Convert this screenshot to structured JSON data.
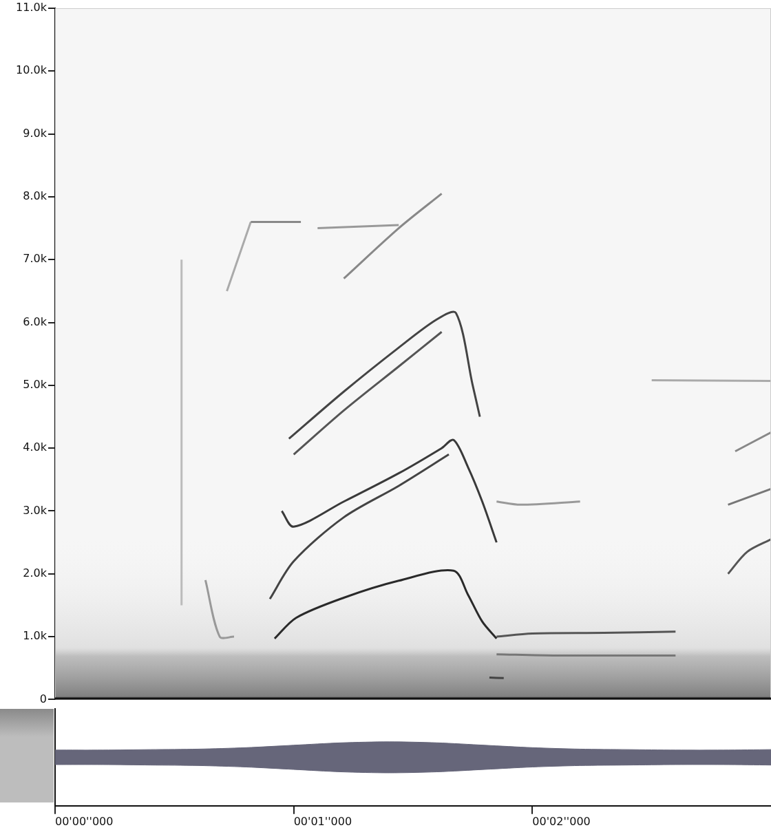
{
  "chart_data": [
    {
      "type": "line",
      "xlim": [
        0,
        3
      ],
      "ylim": [
        0,
        11000
      ],
      "yticks": [
        0,
        {
          "value": 1000,
          "label": "1.0k"
        },
        {
          "value": 2000,
          "label": "2.0k"
        },
        {
          "value": 3000,
          "label": "3.0k"
        },
        {
          "value": 4000,
          "label": "4.0k"
        },
        {
          "value": 5000,
          "label": "5.0k"
        },
        {
          "value": 6000,
          "label": "6.0k"
        },
        {
          "value": 7000,
          "label": "7.0k"
        },
        {
          "value": 8000,
          "label": "8.0k"
        },
        {
          "value": 9000,
          "label": "9.0k"
        },
        {
          "value": 10000,
          "label": "10.0k"
        },
        {
          "value": 11000,
          "label": "11.0k"
        }
      ],
      "grid": false,
      "tick_labels": "y",
      "series": [
        {
          "color": "#2a2a2a",
          "x": [
            0.92,
            1.01,
            1.21,
            1.44,
            1.67,
            1.73,
            1.79,
            1.85
          ],
          "values": [
            970,
            1300,
            1620,
            1890,
            2050,
            1670,
            1240,
            970
          ]
        },
        {
          "color": "#555555",
          "x": [
            1.85,
            2.0,
            2.3,
            2.6
          ],
          "values": [
            1000,
            1050,
            1060,
            1080
          ]
        },
        {
          "color": "#777777",
          "x": [
            1.85,
            2.1,
            2.6
          ],
          "values": [
            720,
            700,
            700
          ]
        },
        {
          "color": "#444444",
          "x": [
            1.82,
            1.88
          ],
          "values": [
            350,
            340
          ]
        },
        {
          "color": "#3a3a3a",
          "x": [
            0.95,
            1.0,
            1.21,
            1.44,
            1.62,
            1.67,
            1.73,
            1.79,
            1.85
          ],
          "values": [
            3000,
            2750,
            3150,
            3600,
            4000,
            4130,
            3700,
            3150,
            2500
          ]
        },
        {
          "color": "#444444",
          "x": [
            0.9,
            1.0,
            1.21,
            1.44,
            1.65
          ],
          "values": [
            1600,
            2200,
            2900,
            3400,
            3900
          ]
        },
        {
          "color": "#444444",
          "x": [
            0.98,
            1.21,
            1.44,
            1.6,
            1.68,
            1.75,
            1.78
          ],
          "values": [
            4150,
            4900,
            5600,
            6050,
            6150,
            5000,
            4500
          ]
        },
        {
          "color": "#555555",
          "x": [
            1.0,
            1.21,
            1.44,
            1.62
          ],
          "values": [
            3900,
            4600,
            5300,
            5850
          ]
        },
        {
          "color": "#888888",
          "x": [
            1.21,
            1.44,
            1.62
          ],
          "values": [
            6700,
            7500,
            8050
          ]
        },
        {
          "color": "#888888",
          "x": [
            0.82,
            1.03
          ],
          "values": [
            7600,
            7600
          ]
        },
        {
          "color": "#999999",
          "x": [
            1.1,
            1.44
          ],
          "values": [
            7500,
            7550
          ]
        },
        {
          "color": "#aaaaaa",
          "x": [
            0.72,
            0.82
          ],
          "values": [
            6500,
            7600
          ]
        },
        {
          "color": "#999999",
          "x": [
            1.85,
            1.95,
            2.2
          ],
          "values": [
            3150,
            3100,
            3150
          ]
        },
        {
          "color": "#aaaaaa",
          "x": [
            2.5,
            3.0
          ],
          "values": [
            5080,
            5070
          ]
        },
        {
          "color": "#555555",
          "x": [
            2.82,
            2.9,
            3.0
          ],
          "values": [
            2000,
            2350,
            2550
          ]
        },
        {
          "color": "#777777",
          "x": [
            2.82,
            3.0
          ],
          "values": [
            3100,
            3350
          ]
        },
        {
          "color": "#888888",
          "x": [
            2.85,
            3.0
          ],
          "values": [
            3950,
            4250
          ]
        },
        {
          "color": "#bbbbbb",
          "x": [
            0.53,
            0.53
          ],
          "values": [
            7000,
            1500
          ]
        },
        {
          "color": "#999999",
          "x": [
            0.63,
            0.69,
            0.75
          ],
          "values": [
            1900,
            1000,
            1000
          ]
        }
      ]
    },
    {
      "type": "line",
      "xlim": [
        0,
        3
      ],
      "xticks": [
        {
          "value": 0,
          "label": "00'00''000"
        },
        {
          "value": 1,
          "label": "00'01''000"
        },
        {
          "value": 2,
          "label": "00'02''000"
        }
      ],
      "ylim": [
        -1,
        1
      ],
      "grid": false,
      "tick_labels": "x",
      "color": "#66667a",
      "x": [
        0,
        0.2,
        0.4,
        0.6,
        0.8,
        1.0,
        1.2,
        1.4,
        1.6,
        1.8,
        2.0,
        2.2,
        2.4,
        2.6,
        2.8,
        3.0
      ],
      "envelope_upper": [
        0.15,
        0.15,
        0.16,
        0.17,
        0.2,
        0.25,
        0.3,
        0.32,
        0.3,
        0.25,
        0.2,
        0.17,
        0.16,
        0.15,
        0.15,
        0.16
      ],
      "envelope_lower": [
        -0.15,
        -0.15,
        -0.16,
        -0.17,
        -0.2,
        -0.25,
        -0.3,
        -0.32,
        -0.3,
        -0.25,
        -0.2,
        -0.17,
        -0.16,
        -0.15,
        -0.15,
        -0.16
      ]
    }
  ]
}
